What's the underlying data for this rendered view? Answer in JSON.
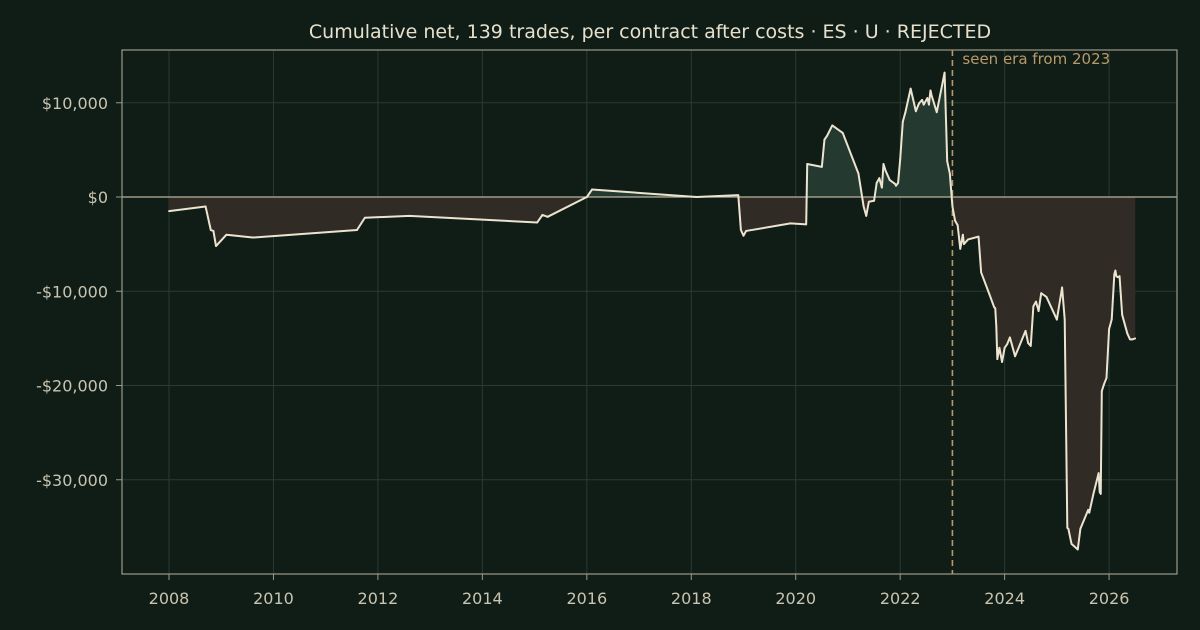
{
  "chart_data": {
    "type": "area",
    "title": "Cumulative net, 139 trades, per contract after costs  ·  ES · U · REJECTED",
    "xlabel": "",
    "ylabel": "",
    "xlim": [
      2007.1,
      2027.3
    ],
    "ylim": [
      -40000,
      15600
    ],
    "grid": true,
    "x_ticks": [
      2008,
      2010,
      2012,
      2014,
      2016,
      2018,
      2020,
      2022,
      2024,
      2026
    ],
    "x_tick_labels": [
      "2008",
      "2010",
      "2012",
      "2014",
      "2016",
      "2018",
      "2020",
      "2022",
      "2024",
      "2026"
    ],
    "y_ticks": [
      10000,
      0,
      -10000,
      -20000,
      -30000
    ],
    "y_tick_labels": [
      "$10,000",
      "$0",
      "-$10,000",
      "-$20,000",
      "-$30,000"
    ],
    "annotation": {
      "x": 2023.0,
      "text": "seen era from 2023"
    },
    "fill_colors": {
      "positive": "#243a30",
      "negative": "#302b25"
    },
    "line_color": "#ece4d0",
    "series": [
      {
        "x": [
          2008.0,
          2008.7,
          2008.8,
          2008.85,
          2008.9,
          2009.1,
          2009.6,
          2011.6,
          2011.75,
          2012.6,
          2015.05,
          2015.15,
          2015.25,
          2016.0,
          2016.05,
          2016.1,
          2018.1,
          2018.9,
          2018.95,
          2019.0,
          2019.05,
          2019.9,
          2020.2,
          2020.22,
          2020.5,
          2020.55,
          2020.6,
          2020.7,
          2020.9,
          2021.2,
          2021.3,
          2021.35,
          2021.4,
          2021.5,
          2021.55,
          2021.6,
          2021.62,
          2021.65,
          2021.68,
          2021.72,
          2021.8,
          2021.9,
          2021.92,
          2021.96,
          2022.0,
          2022.05,
          2022.1,
          2022.2,
          2022.3,
          2022.35,
          2022.37,
          2022.42,
          2022.45,
          2022.52,
          2022.55,
          2022.58,
          2022.6,
          2022.7,
          2022.85,
          2022.87,
          2022.9,
          2022.95,
          2023.0,
          2023.05,
          2023.1,
          2023.15,
          2023.2,
          2023.22,
          2023.3,
          2023.5,
          2023.55,
          2023.7,
          2023.8,
          2023.82,
          2023.84,
          2023.86,
          2023.9,
          2023.95,
          2024.0,
          2024.05,
          2024.1,
          2024.2,
          2024.4,
          2024.45,
          2024.5,
          2024.55,
          2024.6,
          2024.65,
          2024.7,
          2024.8,
          2024.9,
          2025.0,
          2025.1,
          2025.15,
          2025.2,
          2025.22,
          2025.28,
          2025.4,
          2025.45,
          2025.6,
          2025.62,
          2025.7,
          2025.8,
          2025.82,
          2025.84,
          2025.86,
          2025.9,
          2025.95,
          2026.0,
          2026.05,
          2026.1,
          2026.12,
          2026.14,
          2026.16,
          2026.18,
          2026.2,
          2026.25,
          2026.35,
          2026.4,
          2026.45,
          2026.5
        ],
        "y": [
          -1500,
          -1000,
          -3500,
          -3600,
          -5200,
          -4000,
          -4300,
          -3500,
          -2200,
          -2000,
          -2700,
          -1900,
          -2100,
          0,
          400,
          800,
          0,
          200,
          -3500,
          -4100,
          -3600,
          -2800,
          -2900,
          3500,
          3200,
          6100,
          6500,
          7600,
          6800,
          2500,
          -1000,
          -2000,
          -500,
          -400,
          1500,
          2000,
          1600,
          1000,
          3500,
          2800,
          1800,
          1400,
          1200,
          1500,
          4000,
          8000,
          9000,
          11500,
          9100,
          9800,
          10000,
          10300,
          9800,
          10500,
          9800,
          11300,
          10800,
          9000,
          13200,
          9500,
          3800,
          2500,
          -1000,
          -2500,
          -3000,
          -5500,
          -4000,
          -5000,
          -4500,
          -4200,
          -8000,
          -10200,
          -11700,
          -11800,
          -13700,
          -17200,
          -16000,
          -17500,
          -16000,
          -15600,
          -14900,
          -16900,
          -14200,
          -15500,
          -15800,
          -11600,
          -11100,
          -12100,
          -10200,
          -10600,
          -11800,
          -13000,
          -9600,
          -13000,
          -35100,
          -35200,
          -36800,
          -37400,
          -35200,
          -33200,
          -33500,
          -31500,
          -29300,
          -31300,
          -31500,
          -20600,
          -19900,
          -19200,
          -14000,
          -13000,
          -8200,
          -7800,
          -8400,
          -8500,
          -8500,
          -8400,
          -12500,
          -14500,
          -15100,
          -15100,
          -15000
        ]
      }
    ]
  }
}
